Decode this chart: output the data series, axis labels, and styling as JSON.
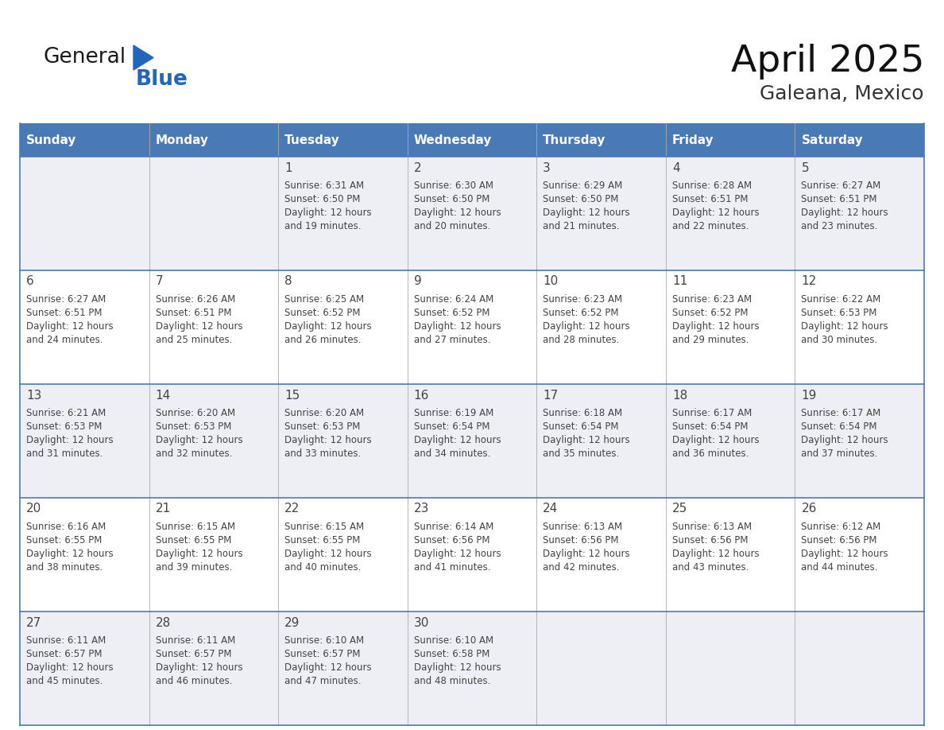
{
  "title": "April 2025",
  "subtitle": "Galeana, Mexico",
  "header_bg": "#4a7ab5",
  "header_text_color": "#ffffff",
  "cell_bg_light": "#eeeff4",
  "cell_bg_white": "#ffffff",
  "row_line_color": "#4a7ab5",
  "text_color": "#444444",
  "days_of_week": [
    "Sunday",
    "Monday",
    "Tuesday",
    "Wednesday",
    "Thursday",
    "Friday",
    "Saturday"
  ],
  "calendar": [
    [
      {
        "day": "",
        "sunrise": "",
        "sunset": "",
        "daylight_min": null
      },
      {
        "day": "",
        "sunrise": "",
        "sunset": "",
        "daylight_min": null
      },
      {
        "day": "1",
        "sunrise": "6:31 AM",
        "sunset": "6:50 PM",
        "daylight_min": 1219
      },
      {
        "day": "2",
        "sunrise": "6:30 AM",
        "sunset": "6:50 PM",
        "daylight_min": 1220
      },
      {
        "day": "3",
        "sunrise": "6:29 AM",
        "sunset": "6:50 PM",
        "daylight_min": 1221
      },
      {
        "day": "4",
        "sunrise": "6:28 AM",
        "sunset": "6:51 PM",
        "daylight_min": 1222
      },
      {
        "day": "5",
        "sunrise": "6:27 AM",
        "sunset": "6:51 PM",
        "daylight_min": 1223
      }
    ],
    [
      {
        "day": "6",
        "sunrise": "6:27 AM",
        "sunset": "6:51 PM",
        "daylight_min": 1224
      },
      {
        "day": "7",
        "sunrise": "6:26 AM",
        "sunset": "6:51 PM",
        "daylight_min": 1225
      },
      {
        "day": "8",
        "sunrise": "6:25 AM",
        "sunset": "6:52 PM",
        "daylight_min": 1226
      },
      {
        "day": "9",
        "sunrise": "6:24 AM",
        "sunset": "6:52 PM",
        "daylight_min": 1227
      },
      {
        "day": "10",
        "sunrise": "6:23 AM",
        "sunset": "6:52 PM",
        "daylight_min": 1228
      },
      {
        "day": "11",
        "sunrise": "6:23 AM",
        "sunset": "6:52 PM",
        "daylight_min": 1229
      },
      {
        "day": "12",
        "sunrise": "6:22 AM",
        "sunset": "6:53 PM",
        "daylight_min": 1230
      }
    ],
    [
      {
        "day": "13",
        "sunrise": "6:21 AM",
        "sunset": "6:53 PM",
        "daylight_min": 1231
      },
      {
        "day": "14",
        "sunrise": "6:20 AM",
        "sunset": "6:53 PM",
        "daylight_min": 1232
      },
      {
        "day": "15",
        "sunrise": "6:20 AM",
        "sunset": "6:53 PM",
        "daylight_min": 1233
      },
      {
        "day": "16",
        "sunrise": "6:19 AM",
        "sunset": "6:54 PM",
        "daylight_min": 1234
      },
      {
        "day": "17",
        "sunrise": "6:18 AM",
        "sunset": "6:54 PM",
        "daylight_min": 1235
      },
      {
        "day": "18",
        "sunrise": "6:17 AM",
        "sunset": "6:54 PM",
        "daylight_min": 1236
      },
      {
        "day": "19",
        "sunrise": "6:17 AM",
        "sunset": "6:54 PM",
        "daylight_min": 1237
      }
    ],
    [
      {
        "day": "20",
        "sunrise": "6:16 AM",
        "sunset": "6:55 PM",
        "daylight_min": 1238
      },
      {
        "day": "21",
        "sunrise": "6:15 AM",
        "sunset": "6:55 PM",
        "daylight_min": 1239
      },
      {
        "day": "22",
        "sunrise": "6:15 AM",
        "sunset": "6:55 PM",
        "daylight_min": 1240
      },
      {
        "day": "23",
        "sunrise": "6:14 AM",
        "sunset": "6:56 PM",
        "daylight_min": 1241
      },
      {
        "day": "24",
        "sunrise": "6:13 AM",
        "sunset": "6:56 PM",
        "daylight_min": 1242
      },
      {
        "day": "25",
        "sunrise": "6:13 AM",
        "sunset": "6:56 PM",
        "daylight_min": 1243
      },
      {
        "day": "26",
        "sunrise": "6:12 AM",
        "sunset": "6:56 PM",
        "daylight_min": 1244
      }
    ],
    [
      {
        "day": "27",
        "sunrise": "6:11 AM",
        "sunset": "6:57 PM",
        "daylight_min": 1245
      },
      {
        "day": "28",
        "sunrise": "6:11 AM",
        "sunset": "6:57 PM",
        "daylight_min": 1246
      },
      {
        "day": "29",
        "sunrise": "6:10 AM",
        "sunset": "6:57 PM",
        "daylight_min": 1247
      },
      {
        "day": "30",
        "sunrise": "6:10 AM",
        "sunset": "6:58 PM",
        "daylight_min": 1248
      },
      {
        "day": "",
        "sunrise": "",
        "sunset": "",
        "daylight_min": null
      },
      {
        "day": "",
        "sunrise": "",
        "sunset": "",
        "daylight_min": null
      },
      {
        "day": "",
        "sunrise": "",
        "sunset": "",
        "daylight_min": null
      }
    ]
  ],
  "logo_general_color": "#1a1a1a",
  "logo_blue_color": "#2266bb",
  "title_color": "#111111",
  "subtitle_color": "#333333"
}
